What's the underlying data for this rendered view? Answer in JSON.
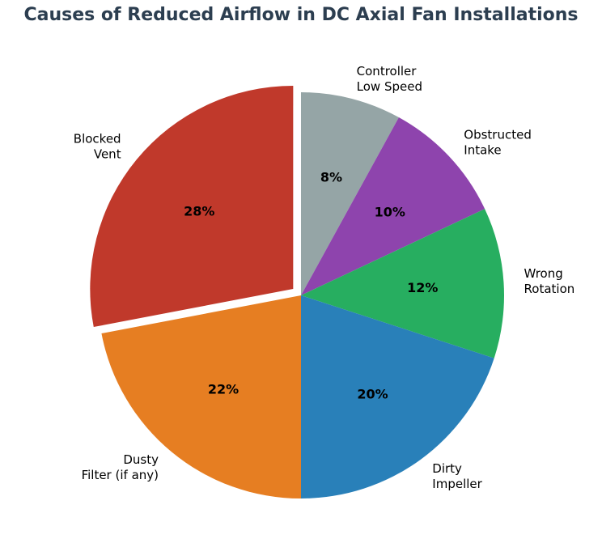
{
  "chart_data": {
    "type": "pie",
    "title": "Causes of Reduced Airflow in DC Axial Fan Installations",
    "start_angle_deg": 90,
    "direction": "clockwise",
    "slices": [
      {
        "label": "Controller\nLow Speed",
        "value": 8,
        "pct_label": "8%",
        "color": "#95a5a6",
        "exploded": false
      },
      {
        "label": "Obstructed\nIntake",
        "value": 10,
        "pct_label": "10%",
        "color": "#8e44ad",
        "exploded": false
      },
      {
        "label": "Wrong\nRotation",
        "value": 12,
        "pct_label": "12%",
        "color": "#27ae60",
        "exploded": false
      },
      {
        "label": "Dirty\nImpeller",
        "value": 20,
        "pct_label": "20%",
        "color": "#2980b9",
        "exploded": false
      },
      {
        "label": "Dusty\nFilter (if any)",
        "value": 22,
        "pct_label": "22%",
        "color": "#e67e22",
        "exploded": false
      },
      {
        "label": "Blocked\nVent",
        "value": 28,
        "pct_label": "28%",
        "color": "#c0392b",
        "exploded": true
      }
    ]
  }
}
